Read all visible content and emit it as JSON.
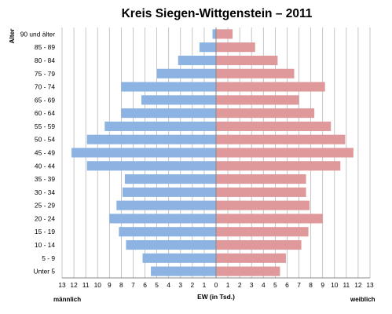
{
  "chart_data": {
    "type": "bar",
    "orientation": "horizontal-population-pyramid",
    "title": "Kreis Siegen-Wittgenstein – 2011",
    "ylabel": "Alter",
    "xlabel": "EW (in Tsd.)",
    "left_label": "männlich",
    "right_label": "weiblich",
    "xlim": [
      -13,
      13
    ],
    "x_ticks": [
      "13",
      "12",
      "11",
      "10",
      "9",
      "8",
      "7",
      "6",
      "5",
      "4",
      "3",
      "2",
      "1",
      "0",
      "1",
      "2",
      "3",
      "4",
      "5",
      "6",
      "7",
      "8",
      "9",
      "10",
      "11",
      "12",
      "13"
    ],
    "grid": "vertical",
    "categories": [
      "90 und älter",
      "85 - 89",
      "80 - 84",
      "75 - 79",
      "70 - 74",
      "65 - 69",
      "60 - 64",
      "55 - 59",
      "50 - 54",
      "45 - 49",
      "40 - 44",
      "35 - 39",
      "30 - 34",
      "25 - 29",
      "20 - 24",
      "15 - 19",
      "10 - 14",
      "5 - 9",
      "Unter 5"
    ],
    "series": [
      {
        "values": [
          0.3,
          1.4,
          3.2,
          5.0,
          8.0,
          6.3,
          8.0,
          9.4,
          10.9,
          12.2,
          10.9,
          7.7,
          7.9,
          8.4,
          9.0,
          8.2,
          7.6,
          6.2,
          5.5
        ],
        "color": "#8db3e2"
      },
      {
        "values": [
          1.4,
          3.3,
          5.2,
          6.6,
          9.2,
          7.0,
          8.3,
          9.7,
          10.9,
          11.6,
          10.5,
          7.6,
          7.6,
          7.9,
          9.0,
          7.8,
          7.2,
          5.9,
          5.4
        ],
        "color": "#e0999a"
      }
    ]
  }
}
